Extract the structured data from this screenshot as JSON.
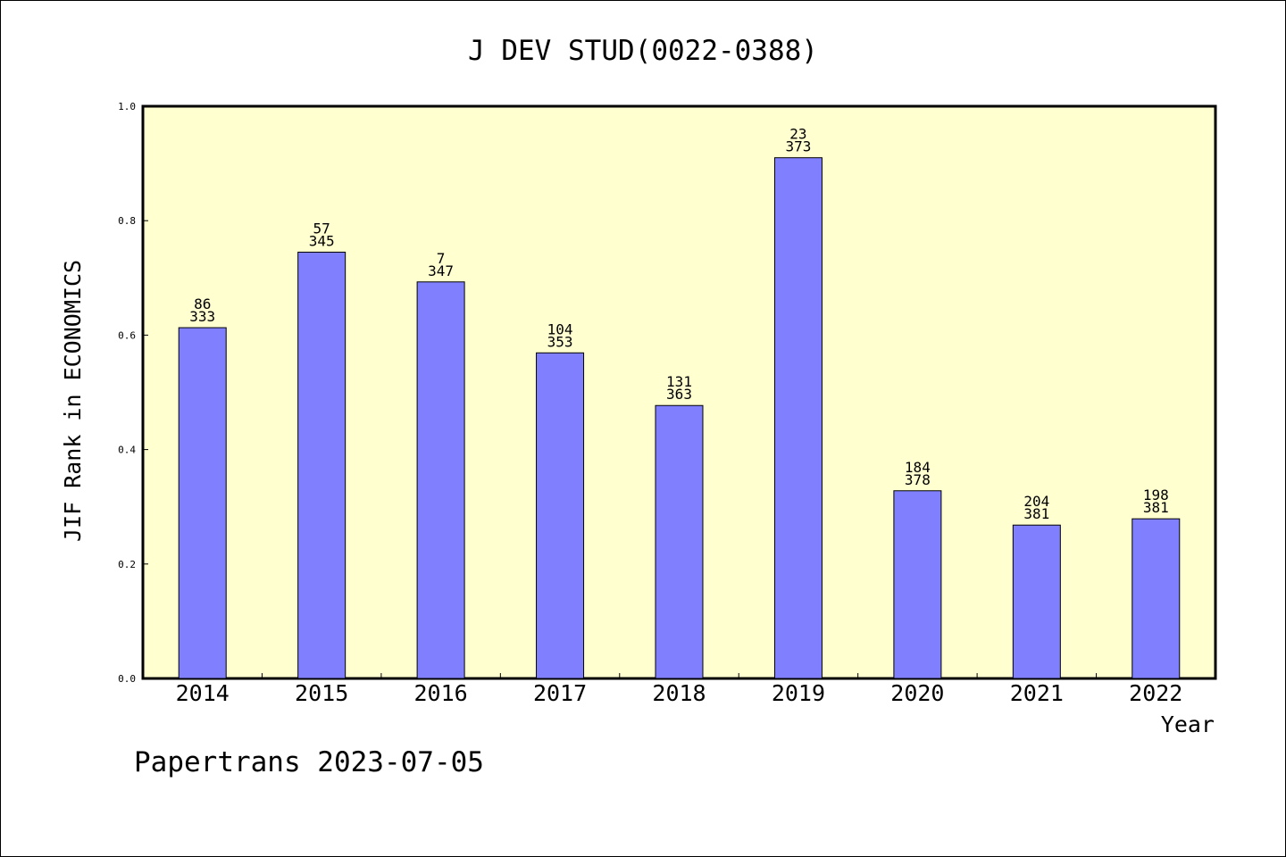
{
  "chart_data": {
    "type": "bar",
    "title": "J DEV STUD(0022-0388)",
    "xlabel": "Year",
    "ylabel": "JIF Rank in ECONOMICS",
    "categories": [
      "2014",
      "2015",
      "2016",
      "2017",
      "2018",
      "2019",
      "2020",
      "2021",
      "2022"
    ],
    "values": [
      0.613,
      0.745,
      0.693,
      0.569,
      0.477,
      0.91,
      0.328,
      0.268,
      0.279
    ],
    "rank": [
      "86",
      "57",
      "7",
      "104",
      "131",
      "23",
      "184",
      "204",
      "198"
    ],
    "total": [
      "333",
      "345",
      "347",
      "353",
      "363",
      "373",
      "378",
      "381",
      "381"
    ],
    "ylim": [
      0,
      1.0
    ],
    "yticks": [
      "0.0",
      "0.2",
      "0.4",
      "0.6",
      "0.8",
      "1.0"
    ],
    "bar_color": "#8080ff",
    "plot_background": "#ffffd0",
    "grid": false
  },
  "footer": {
    "caption": "Papertrans 2023-07-05"
  }
}
